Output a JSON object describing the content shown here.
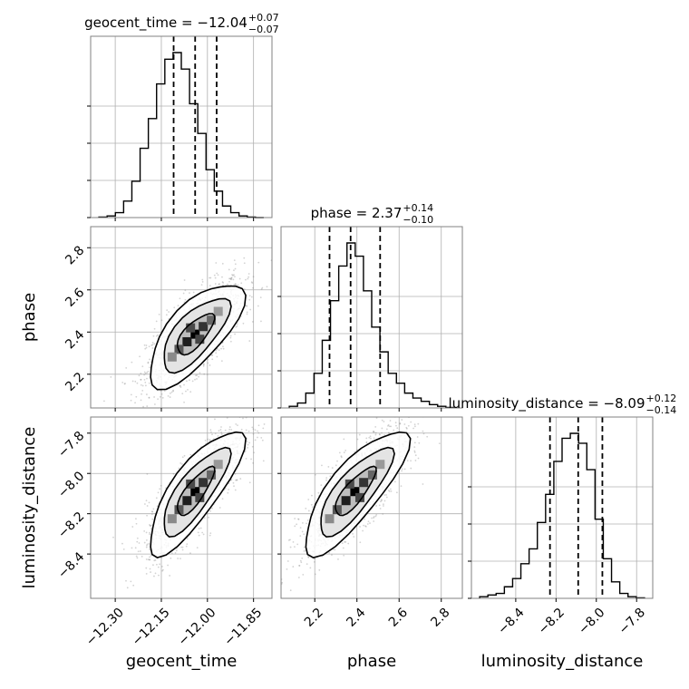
{
  "chart_data": {
    "type": "corner",
    "parameters": [
      "geocent_time",
      "phase",
      "luminosity_distance"
    ],
    "titles": [
      {
        "name": "geocent_time",
        "median": "−12.04",
        "plus": "+0.07",
        "minus": "−0.07"
      },
      {
        "name": "phase",
        "median": "2.37",
        "plus": "+0.14",
        "minus": "−0.10"
      },
      {
        "name": "luminosity_distance",
        "median": "−8.09",
        "plus": "+0.12",
        "minus": "−0.14"
      }
    ],
    "axis_labels": {
      "x": [
        "geocent_time",
        "phase",
        "luminosity_distance"
      ],
      "y": [
        "phase",
        "luminosity_distance"
      ]
    },
    "ranges": [
      [
        -12.38,
        -11.79
      ],
      [
        2.04,
        2.9
      ],
      [
        -8.62,
        -7.72
      ]
    ],
    "ticks": {
      "geocent_time": {
        "values": [
          -12.3,
          -12.15,
          -12.0,
          -11.85
        ],
        "labels": [
          "−12.30",
          "−12.15",
          "−12.00",
          "−11.85"
        ]
      },
      "phase": {
        "values": [
          2.2,
          2.4,
          2.6,
          2.8
        ],
        "labels": [
          "2.2",
          "2.4",
          "2.6",
          "2.8"
        ]
      },
      "luminosity_distance": {
        "values": [
          -8.4,
          -8.2,
          -8.0,
          -7.8
        ],
        "labels": [
          "−8.4",
          "−8.2",
          "−8.0",
          "−7.8"
        ]
      }
    },
    "quantiles": [
      [
        -12.11,
        -12.04,
        -11.97
      ],
      [
        2.27,
        2.37,
        2.51
      ],
      [
        -8.23,
        -8.09,
        -7.97
      ]
    ],
    "histograms": [
      {
        "param": "geocent_time",
        "bins": 20,
        "heights": [
          0.003,
          0.01,
          0.03,
          0.1,
          0.22,
          0.42,
          0.6,
          0.81,
          0.96,
          1.0,
          0.9,
          0.69,
          0.51,
          0.29,
          0.16,
          0.07,
          0.03,
          0.01,
          0.003,
          0.0
        ]
      },
      {
        "param": "phase",
        "bins": 20,
        "heights": [
          0.01,
          0.03,
          0.09,
          0.21,
          0.41,
          0.65,
          0.86,
          1.0,
          0.92,
          0.71,
          0.49,
          0.34,
          0.21,
          0.15,
          0.09,
          0.06,
          0.04,
          0.02,
          0.01,
          0.003
        ]
      },
      {
        "param": "luminosity_distance",
        "bins": 20,
        "heights": [
          0.01,
          0.02,
          0.03,
          0.07,
          0.12,
          0.21,
          0.3,
          0.46,
          0.63,
          0.83,
          0.97,
          1.0,
          0.94,
          0.78,
          0.48,
          0.24,
          0.1,
          0.03,
          0.01,
          0.003
        ]
      }
    ],
    "pairs": [
      {
        "x": "geocent_time",
        "y": "phase",
        "mean": [
          -12.04,
          2.39
        ],
        "sd": [
          0.075,
          0.12
        ],
        "rho": 0.7
      },
      {
        "x": "geocent_time",
        "y": "luminosity_distance",
        "mean": [
          -12.04,
          -8.09
        ],
        "sd": [
          0.075,
          0.15
        ],
        "rho": 0.8
      },
      {
        "x": "phase",
        "y": "luminosity_distance",
        "mean": [
          2.39,
          -8.09
        ],
        "sd": [
          0.12,
          0.15
        ],
        "rho": 0.8
      }
    ],
    "contour_levels": [
      "1-sigma",
      "2-sigma",
      "3-sigma"
    ],
    "grid": true,
    "colors": {
      "line": "#000000",
      "grid": "#b0b0b0",
      "scatter": "#808080"
    }
  }
}
